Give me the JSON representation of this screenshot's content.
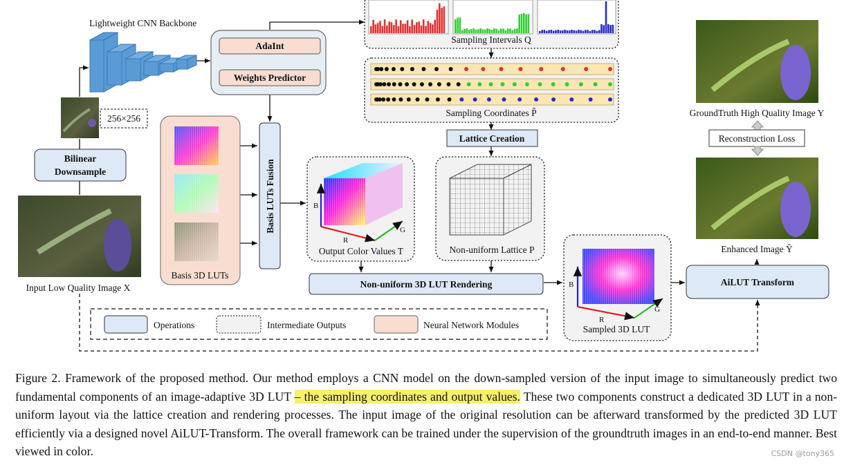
{
  "nodes": {
    "backbone_label": "Lightweight CNN Backbone",
    "adaint": "AdaInt",
    "weights_predictor": "Weights Predictor",
    "sampling_intervals": "Sampling Intervals Q",
    "sampling_coordinates": "Sampling Coordinates P̂",
    "lattice_creation": "Lattice Creation",
    "basis_luts_fusion": "Basis LUTs Fusion",
    "basis_3d_luts": "Basis 3D LUTs",
    "output_color_values": "Output Color Values T",
    "nonuniform_lattice": "Non-uniform Lattice P",
    "nonuniform_rendering": "Non-uniform 3D LUT Rendering",
    "sampled_3d_lut": "Sampled 3D LUT",
    "ailut_transform": "AiLUT Transform",
    "bilinear_downsample_line1": "Bilinear",
    "bilinear_downsample_line2": "Downsample",
    "size_label": "256×256",
    "input_image": "Input Low Quality Image X",
    "groundtruth_image": "GroundTruth High Quality Image Y",
    "reconstruction_loss": "Reconstruction Loss",
    "enhanced_image": "Enhanced Image Ŷ",
    "axis_b": "B",
    "axis_r": "R",
    "axis_g": "G"
  },
  "legend": {
    "operations": "Operations",
    "intermediate": "Intermediate Outputs",
    "neural": "Neural Network Modules"
  },
  "colors": {
    "operations_fill": "#dde9f6",
    "neural_fill": "#f8ddd0",
    "intermediate_fill": "#f2f2f2",
    "cnn_block": "#5b9bd5",
    "hist_red": "#e03030",
    "hist_green": "#33cc33",
    "hist_blue": "#2a2acc",
    "highlight": "#f7f06a"
  },
  "caption": {
    "part1": "Figure 2.  Framework of the proposed method.  Our method employs a CNN model on the down-sampled version of the input image to simultaneously predict two fundamental components of an image-adaptive 3D LUT ",
    "highlight": "– the sampling coordinates and output values.",
    "part2": " These two components construct a dedicated 3D LUT in a non-uniform layout via the lattice creation and rendering processes. The input image of the original resolution can be afterward transformed by the predicted 3D LUT efficiently via a designed novel AiLUT-Transform. The overall framework can be trained under the supervision of the groundtruth images in an end-to-end manner. Best viewed in color."
  },
  "watermark": "CSDN @tony365"
}
